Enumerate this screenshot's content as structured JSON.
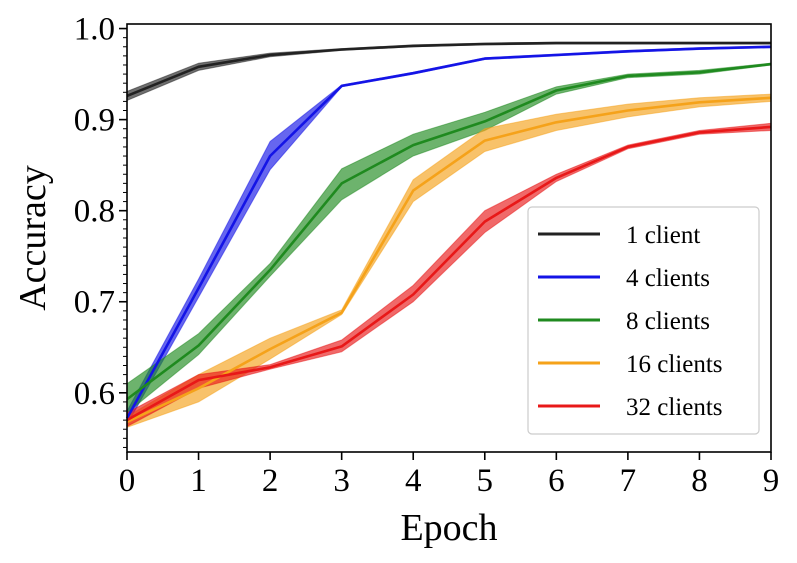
{
  "chart_data": {
    "type": "line",
    "title": "",
    "xlabel": "Epoch",
    "ylabel": "Accuracy",
    "xlim": [
      0,
      9
    ],
    "ylim": [
      0.535,
      1.005
    ],
    "xticks": [
      "0",
      "1",
      "2",
      "3",
      "4",
      "5",
      "6",
      "7",
      "8",
      "9"
    ],
    "yticks": [
      "0.6",
      "0.7",
      "0.8",
      "0.9",
      "1.0"
    ],
    "grid": false,
    "legend_position": "lower-right",
    "x": [
      0,
      1,
      2,
      3,
      4,
      5,
      6,
      7,
      8,
      9
    ],
    "series": [
      {
        "name": "1 client",
        "color": "#222222",
        "values": [
          0.926,
          0.958,
          0.971,
          0.977,
          0.981,
          0.983,
          0.984,
          0.984,
          0.984,
          0.984
        ],
        "lower": [
          0.921,
          0.954,
          0.969,
          0.976,
          0.98,
          0.982,
          0.983,
          0.983,
          0.983,
          0.983
        ],
        "upper": [
          0.931,
          0.962,
          0.973,
          0.978,
          0.982,
          0.984,
          0.985,
          0.985,
          0.985,
          0.985
        ]
      },
      {
        "name": "4 clients",
        "color": "#1414e6",
        "values": [
          0.572,
          0.715,
          0.86,
          0.937,
          0.951,
          0.967,
          0.971,
          0.975,
          0.978,
          0.98
        ],
        "lower": [
          0.565,
          0.705,
          0.845,
          0.936,
          0.95,
          0.966,
          0.97,
          0.974,
          0.977,
          0.979
        ],
        "upper": [
          0.58,
          0.725,
          0.876,
          0.938,
          0.952,
          0.968,
          0.972,
          0.976,
          0.979,
          0.981
        ]
      },
      {
        "name": "8 clients",
        "color": "#1f8a1f",
        "values": [
          0.593,
          0.652,
          0.735,
          0.83,
          0.872,
          0.898,
          0.932,
          0.948,
          0.952,
          0.961
        ],
        "lower": [
          0.578,
          0.642,
          0.728,
          0.812,
          0.86,
          0.888,
          0.928,
          0.946,
          0.95,
          0.96
        ],
        "upper": [
          0.61,
          0.665,
          0.742,
          0.846,
          0.884,
          0.908,
          0.936,
          0.95,
          0.954,
          0.962
        ]
      },
      {
        "name": "16 clients",
        "color": "#f5a21a",
        "values": [
          0.568,
          0.605,
          0.648,
          0.688,
          0.822,
          0.877,
          0.897,
          0.91,
          0.919,
          0.924
        ],
        "lower": [
          0.562,
          0.59,
          0.637,
          0.686,
          0.81,
          0.865,
          0.888,
          0.903,
          0.914,
          0.92
        ],
        "upper": [
          0.574,
          0.62,
          0.66,
          0.691,
          0.834,
          0.89,
          0.906,
          0.917,
          0.924,
          0.928
        ]
      },
      {
        "name": "32 clients",
        "color": "#e81818",
        "values": [
          0.57,
          0.614,
          0.628,
          0.651,
          0.708,
          0.788,
          0.836,
          0.87,
          0.886,
          0.892
        ],
        "lower": [
          0.563,
          0.605,
          0.626,
          0.645,
          0.7,
          0.776,
          0.832,
          0.868,
          0.884,
          0.888
        ],
        "upper": [
          0.578,
          0.62,
          0.631,
          0.658,
          0.718,
          0.8,
          0.84,
          0.872,
          0.888,
          0.896
        ]
      }
    ]
  }
}
